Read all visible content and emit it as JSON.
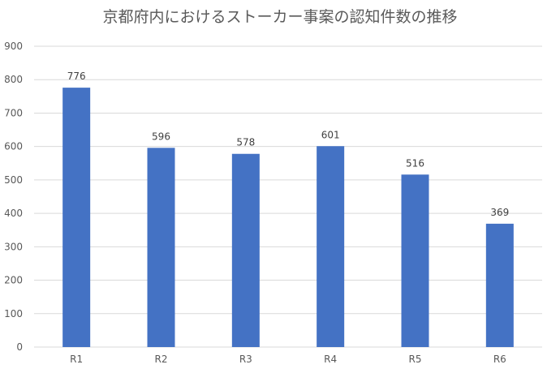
{
  "chart_data": {
    "type": "bar",
    "title": "京都府内におけるストーカー事案の認知件数の推移",
    "categories": [
      "R1",
      "R2",
      "R3",
      "R4",
      "R5",
      "R6"
    ],
    "values": [
      776,
      596,
      578,
      601,
      516,
      369
    ],
    "data_labels": [
      "776",
      "596",
      "578",
      "601",
      "516",
      "369"
    ],
    "y_ticks": [
      "0",
      "100",
      "200",
      "300",
      "400",
      "500",
      "600",
      "700",
      "800",
      "900"
    ],
    "ylim": [
      0,
      900
    ],
    "grid": true,
    "legend": "none",
    "bar_color": "#4472c4"
  }
}
